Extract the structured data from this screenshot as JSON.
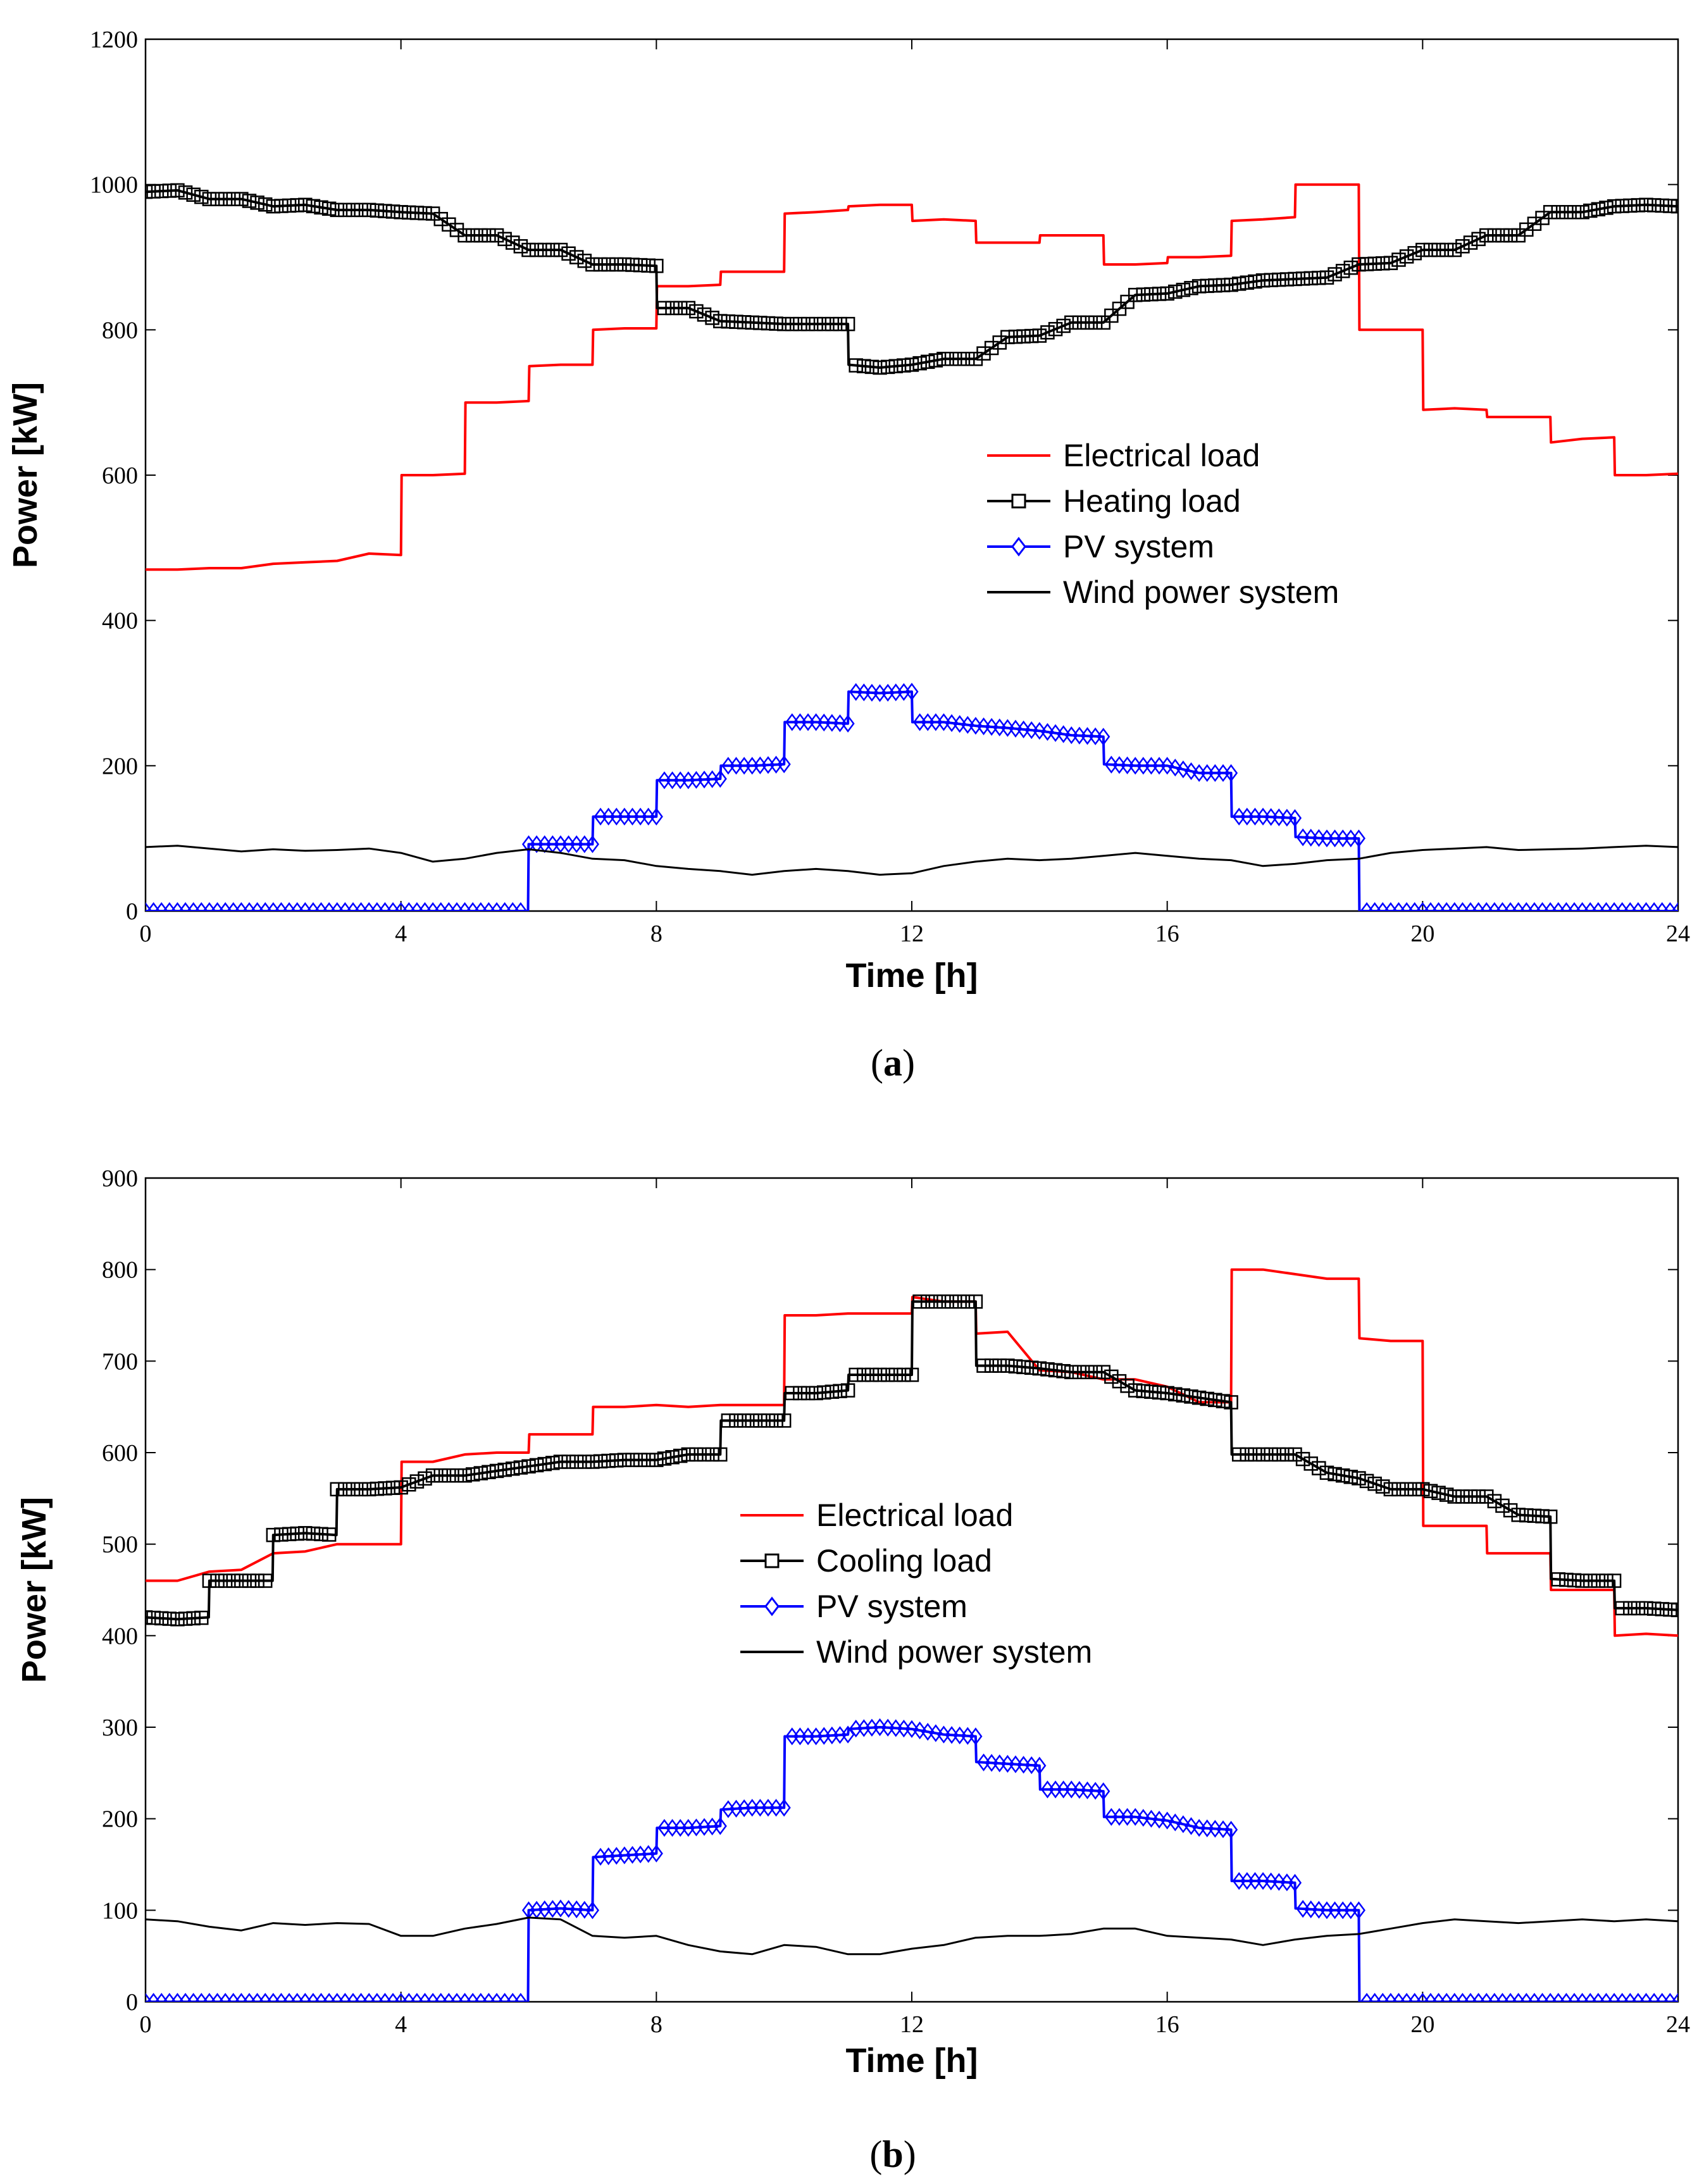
{
  "chart_data": [
    {
      "type": "line",
      "subfigure_label": "a",
      "xlabel": "Time [h]",
      "ylabel": "Power [kW]",
      "xlim": [
        0,
        24
      ],
      "ylim": [
        0,
        1200
      ],
      "xticks": [
        0,
        4,
        8,
        12,
        16,
        20,
        24
      ],
      "yticks": [
        0,
        200,
        400,
        600,
        800,
        1000,
        1200
      ],
      "legend_position": "center-right",
      "series": [
        {
          "name": "Electrical load",
          "color": "#ff0000",
          "marker": "none",
          "x": [
            0,
            0.5,
            1,
            1.5,
            2,
            2.5,
            3,
            3.5,
            4,
            4.01,
            4.5,
            5,
            5.01,
            5.5,
            6,
            6.01,
            6.5,
            7,
            7.01,
            7.5,
            8,
            8.01,
            8.5,
            9,
            9.01,
            9.5,
            10,
            10.01,
            10.5,
            11,
            11.01,
            11.5,
            12,
            12.01,
            12.5,
            13,
            13.01,
            13.5,
            14,
            14.01,
            14.5,
            15,
            15.01,
            15.5,
            16,
            16.01,
            16.5,
            17,
            17.01,
            17.5,
            18,
            18.01,
            18.5,
            19,
            19.01,
            19.5,
            20,
            20.01,
            20.5,
            21,
            21.01,
            21.5,
            22,
            22.01,
            22.5,
            23,
            23.01,
            23.5,
            24
          ],
          "y": [
            470,
            470,
            472,
            472,
            478,
            480,
            482,
            492,
            490,
            600,
            600,
            602,
            700,
            700,
            702,
            750,
            752,
            752,
            800,
            802,
            802,
            860,
            860,
            862,
            880,
            880,
            880,
            960,
            962,
            965,
            970,
            972,
            972,
            950,
            952,
            950,
            920,
            920,
            920,
            930,
            930,
            930,
            890,
            890,
            892,
            900,
            900,
            902,
            950,
            952,
            955,
            1000,
            1000,
            1000,
            800,
            800,
            800,
            690,
            692,
            690,
            680,
            680,
            680,
            645,
            650,
            652,
            600,
            600,
            602
          ]
        },
        {
          "name": "Heating load",
          "color": "#000000",
          "marker": "square",
          "x": [
            0,
            0.5,
            1,
            1.5,
            2,
            2.5,
            3,
            3.5,
            4,
            4.5,
            5,
            5.5,
            6,
            6.5,
            7,
            7.5,
            8,
            8.01,
            8.5,
            9,
            9.5,
            10,
            10.5,
            11,
            11.01,
            11.5,
            12,
            12.5,
            13,
            13.5,
            14,
            14.5,
            15,
            15.5,
            16,
            16.5,
            17,
            17.5,
            18,
            18.5,
            19,
            19.5,
            20,
            20.5,
            21,
            21.5,
            22,
            22.5,
            23,
            23.5,
            24
          ],
          "y": [
            990,
            992,
            980,
            980,
            970,
            972,
            965,
            965,
            962,
            960,
            930,
            930,
            910,
            910,
            890,
            890,
            888,
            830,
            830,
            812,
            810,
            808,
            808,
            808,
            752,
            748,
            752,
            760,
            760,
            790,
            792,
            810,
            810,
            848,
            850,
            860,
            862,
            868,
            870,
            872,
            890,
            892,
            910,
            910,
            930,
            930,
            962,
            962,
            970,
            972,
            970
          ]
        },
        {
          "name": "PV system",
          "color": "#0000ff",
          "marker": "diamond",
          "x": [
            0,
            1,
            2,
            3,
            4,
            5,
            5.99,
            6,
            6.5,
            7,
            7.01,
            7.5,
            8,
            8.01,
            8.5,
            9,
            9.01,
            9.5,
            10,
            10.01,
            10.5,
            11,
            11.01,
            11.5,
            12,
            12.01,
            12.5,
            13,
            13.5,
            14,
            14.5,
            15,
            15.01,
            15.5,
            16,
            16.5,
            17,
            17.01,
            17.5,
            18,
            18.01,
            18.5,
            19,
            19.01,
            20,
            21,
            22,
            23,
            24
          ],
          "y": [
            0,
            0,
            0,
            0,
            0,
            0,
            0,
            92,
            92,
            92,
            130,
            130,
            130,
            180,
            180,
            182,
            200,
            200,
            202,
            260,
            260,
            258,
            302,
            300,
            302,
            260,
            260,
            255,
            252,
            248,
            242,
            240,
            202,
            200,
            200,
            190,
            190,
            130,
            130,
            128,
            102,
            100,
            100,
            0,
            0,
            0,
            0,
            0,
            0
          ]
        },
        {
          "name": "Wind power system",
          "color": "#000000",
          "marker": "none",
          "x": [
            0,
            0.5,
            1,
            1.5,
            2,
            2.5,
            3,
            3.5,
            4,
            4.5,
            5,
            5.5,
            6,
            6.5,
            7,
            7.5,
            8,
            8.5,
            9,
            9.5,
            10,
            10.5,
            11,
            11.5,
            12,
            12.5,
            13,
            13.5,
            14,
            14.5,
            15,
            15.5,
            16,
            16.5,
            17,
            17.5,
            18,
            18.5,
            19,
            19.5,
            20,
            20.5,
            21,
            21.5,
            22,
            22.5,
            23,
            23.5,
            24
          ],
          "y": [
            88,
            90,
            86,
            82,
            85,
            83,
            84,
            86,
            80,
            68,
            72,
            80,
            85,
            80,
            72,
            70,
            62,
            58,
            55,
            50,
            55,
            58,
            55,
            50,
            52,
            62,
            68,
            72,
            70,
            72,
            76,
            80,
            76,
            72,
            70,
            62,
            65,
            70,
            72,
            80,
            84,
            86,
            88,
            84,
            85,
            86,
            88,
            90,
            88
          ]
        }
      ]
    },
    {
      "type": "line",
      "subfigure_label": "b",
      "xlabel": "Time [h]",
      "ylabel": "Power [kW]",
      "xlim": [
        0,
        24
      ],
      "ylim": [
        0,
        900
      ],
      "xticks": [
        0,
        4,
        8,
        12,
        16,
        20,
        24
      ],
      "yticks": [
        0,
        100,
        200,
        300,
        400,
        500,
        600,
        700,
        800,
        900
      ],
      "legend_position": "center",
      "series": [
        {
          "name": "Electrical load",
          "color": "#ff0000",
          "marker": "none",
          "x": [
            0,
            0.5,
            1,
            1.5,
            2,
            2.5,
            3,
            3.5,
            4,
            4.01,
            4.5,
            5,
            5.5,
            6,
            6.01,
            6.5,
            7,
            7.01,
            7.5,
            8,
            8.5,
            9,
            9.5,
            10,
            10.01,
            10.5,
            11,
            11.5,
            12,
            12.01,
            12.5,
            13,
            13.01,
            13.5,
            14,
            14.5,
            15,
            15.5,
            16,
            16.5,
            17,
            17.01,
            17.5,
            18,
            18.5,
            19,
            19.01,
            19.5,
            20,
            20.01,
            20.5,
            21,
            21.01,
            21.5,
            22,
            22.01,
            22.5,
            23,
            23.01,
            23.5,
            24
          ],
          "y": [
            460,
            460,
            470,
            472,
            490,
            492,
            500,
            500,
            500,
            590,
            590,
            598,
            600,
            600,
            620,
            620,
            620,
            650,
            650,
            652,
            650,
            652,
            652,
            652,
            750,
            750,
            752,
            752,
            752,
            770,
            765,
            765,
            730,
            732,
            690,
            688,
            680,
            680,
            672,
            655,
            655,
            800,
            800,
            795,
            790,
            790,
            725,
            722,
            722,
            520,
            520,
            520,
            490,
            490,
            490,
            450,
            450,
            450,
            400,
            402,
            400
          ]
        },
        {
          "name": "Cooling load",
          "color": "#000000",
          "marker": "square",
          "x": [
            0,
            0.5,
            0.99,
            1,
            1.5,
            1.99,
            2,
            2.5,
            2.99,
            3,
            3.5,
            4,
            4.5,
            5,
            5.5,
            6,
            6.5,
            7,
            7.5,
            8,
            8.5,
            9,
            9.01,
            9.5,
            10,
            10.01,
            10.5,
            11,
            11.01,
            11.5,
            12,
            12.01,
            12.5,
            13,
            13.01,
            13.5,
            14,
            14.5,
            15,
            15.5,
            16,
            16.5,
            17,
            17.01,
            17.5,
            18,
            18.5,
            19,
            19.5,
            20,
            20.5,
            21,
            21.5,
            22,
            22.01,
            22.5,
            23,
            23.01,
            23.5,
            24
          ],
          "y": [
            420,
            418,
            420,
            460,
            460,
            460,
            510,
            512,
            510,
            560,
            560,
            562,
            575,
            575,
            580,
            585,
            590,
            590,
            592,
            592,
            598,
            598,
            635,
            635,
            635,
            665,
            665,
            668,
            685,
            685,
            685,
            765,
            765,
            765,
            695,
            695,
            692,
            688,
            688,
            668,
            665,
            660,
            655,
            598,
            598,
            598,
            578,
            572,
            560,
            560,
            552,
            552,
            532,
            530,
            462,
            460,
            460,
            430,
            430,
            428
          ]
        },
        {
          "name": "PV system",
          "color": "#0000ff",
          "marker": "diamond",
          "x": [
            0,
            1,
            2,
            3,
            4,
            5,
            5.99,
            6,
            6.5,
            7,
            7.01,
            7.5,
            8,
            8.01,
            8.5,
            9,
            9.01,
            9.5,
            10,
            10.01,
            10.5,
            11,
            11.01,
            11.5,
            12,
            12.5,
            13,
            13.01,
            13.5,
            14,
            14.01,
            14.5,
            15,
            15.01,
            15.5,
            16,
            16.5,
            17,
            17.01,
            17.5,
            18,
            18.01,
            18.5,
            19,
            19.01,
            20,
            21,
            22,
            23,
            24
          ],
          "y": [
            0,
            0,
            0,
            0,
            0,
            0,
            0,
            100,
            102,
            100,
            158,
            160,
            162,
            190,
            190,
            192,
            210,
            212,
            212,
            290,
            290,
            292,
            298,
            300,
            298,
            292,
            290,
            262,
            260,
            258,
            232,
            232,
            230,
            202,
            202,
            198,
            190,
            188,
            132,
            132,
            130,
            102,
            100,
            100,
            0,
            0,
            0,
            0,
            0,
            0
          ]
        },
        {
          "name": "Wind power system",
          "color": "#000000",
          "marker": "none",
          "x": [
            0,
            0.5,
            1,
            1.5,
            2,
            2.5,
            3,
            3.5,
            4,
            4.5,
            5,
            5.5,
            6,
            6.5,
            7,
            7.5,
            8,
            8.5,
            9,
            9.5,
            10,
            10.5,
            11,
            11.5,
            12,
            12.5,
            13,
            13.5,
            14,
            14.5,
            15,
            15.5,
            16,
            16.5,
            17,
            17.5,
            18,
            18.5,
            19,
            19.5,
            20,
            20.5,
            21,
            21.5,
            22,
            22.5,
            23,
            23.5,
            24
          ],
          "y": [
            90,
            88,
            82,
            78,
            86,
            84,
            86,
            85,
            72,
            72,
            80,
            85,
            92,
            90,
            72,
            70,
            72,
            62,
            55,
            52,
            62,
            60,
            52,
            52,
            58,
            62,
            70,
            72,
            72,
            74,
            80,
            80,
            72,
            70,
            68,
            62,
            68,
            72,
            74,
            80,
            86,
            90,
            88,
            86,
            88,
            90,
            88,
            90,
            88
          ]
        }
      ]
    }
  ]
}
